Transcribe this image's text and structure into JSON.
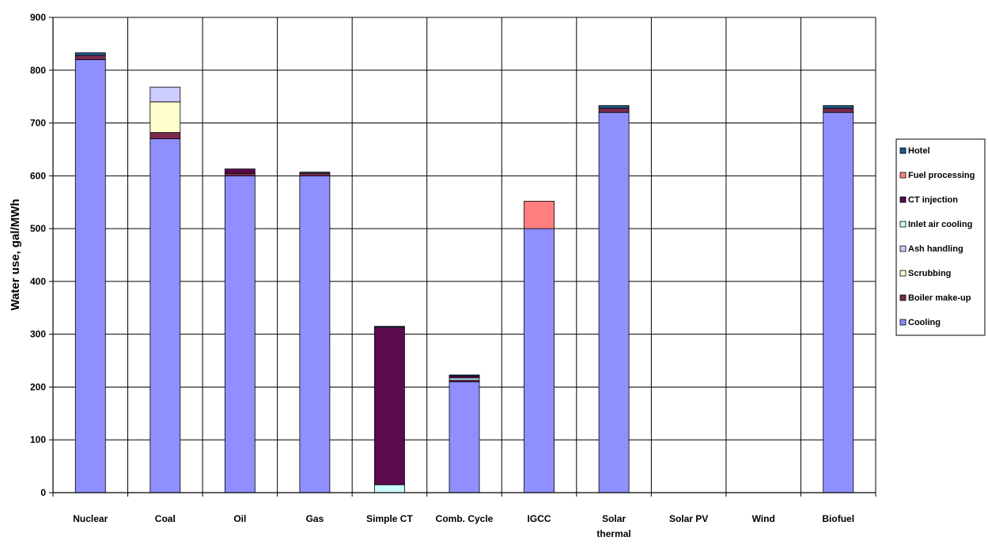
{
  "chart_data": {
    "type": "bar",
    "stacked": true,
    "ylabel": "Water use, gal/MWh",
    "xlabel": "",
    "ylim": [
      0,
      900
    ],
    "yticks": [
      0,
      100,
      200,
      300,
      400,
      500,
      600,
      700,
      800,
      900
    ],
    "grid": true,
    "legend_position": "right",
    "categories": [
      "Nuclear",
      "Coal",
      "Oil",
      "Gas",
      "Simple CT",
      "Comb. Cycle",
      "IGCC",
      "Solar thermal",
      "Solar PV",
      "Wind",
      "Biofuel"
    ],
    "category_lines": [
      [
        "Nuclear"
      ],
      [
        "Coal"
      ],
      [
        "Oil"
      ],
      [
        "Gas"
      ],
      [
        "Simple CT"
      ],
      [
        "Comb. Cycle"
      ],
      [
        "IGCC"
      ],
      [
        "Solar",
        "thermal"
      ],
      [
        "Solar PV"
      ],
      [
        "Wind"
      ],
      [
        "Biofuel"
      ]
    ],
    "series": [
      {
        "name": "Cooling",
        "color": "#8f8fff",
        "values": [
          820,
          670,
          600,
          600,
          0,
          210,
          500,
          720,
          0,
          0,
          720
        ]
      },
      {
        "name": "Boiler make-up",
        "color": "#7a2a4e",
        "values": [
          8,
          12,
          5,
          5,
          0,
          3,
          0,
          8,
          0,
          0,
          8
        ]
      },
      {
        "name": "Scrubbing",
        "color": "#ffffcc",
        "values": [
          0,
          58,
          0,
          0,
          0,
          0,
          0,
          0,
          0,
          0,
          0
        ]
      },
      {
        "name": "Ash handling",
        "color": "#ccccff",
        "values": [
          0,
          28,
          0,
          0,
          0,
          0,
          0,
          0,
          0,
          0,
          0
        ]
      },
      {
        "name": "Inlet air cooling",
        "color": "#ccffff",
        "values": [
          0,
          0,
          0,
          0,
          15,
          4,
          0,
          0,
          0,
          0,
          0
        ]
      },
      {
        "name": "CT injection",
        "color": "#5b0a4e",
        "values": [
          0,
          0,
          8,
          0,
          298,
          4,
          0,
          0,
          0,
          0,
          0
        ]
      },
      {
        "name": "Fuel processing",
        "color": "#ff7f7f",
        "values": [
          0,
          0,
          0,
          0,
          0,
          0,
          52,
          0,
          0,
          0,
          0
        ]
      },
      {
        "name": "Hotel",
        "color": "#1f5a8c",
        "values": [
          5,
          0,
          0,
          2,
          2,
          2,
          0,
          5,
          0,
          0,
          5
        ]
      }
    ]
  }
}
